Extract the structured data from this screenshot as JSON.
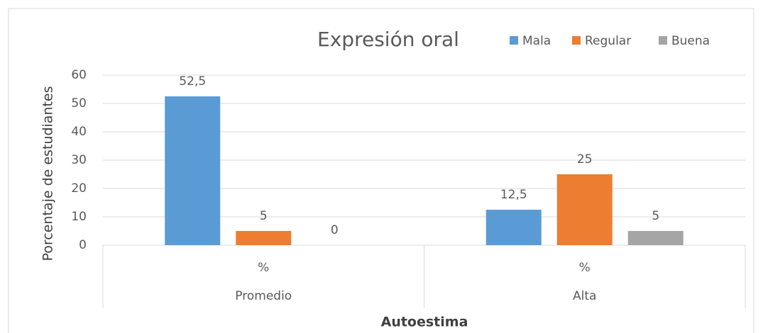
{
  "chart_data": {
    "type": "bar",
    "title": "Expresión oral",
    "y_label": "Porcentaje de estudiantes",
    "x_label": "Autoestima",
    "categories": [
      "%",
      "%"
    ],
    "groups": [
      "Promedio",
      "Alta"
    ],
    "series": [
      {
        "name": "Mala",
        "color": "#5b9bd5",
        "values": [
          52.5,
          12.5
        ],
        "value_labels": [
          "52,5",
          "12,5"
        ]
      },
      {
        "name": "Regular",
        "color": "#ed7d31",
        "values": [
          5,
          25
        ],
        "value_labels": [
          "5",
          "25"
        ]
      },
      {
        "name": "Buena",
        "color": "#a5a5a5",
        "values": [
          0,
          5
        ],
        "value_labels": [
          "0",
          "5"
        ]
      }
    ],
    "ylim": [
      0,
      60
    ],
    "yticks": [
      0,
      10,
      20,
      30,
      40,
      50,
      60
    ],
    "grid": true,
    "legend": "top-right"
  }
}
